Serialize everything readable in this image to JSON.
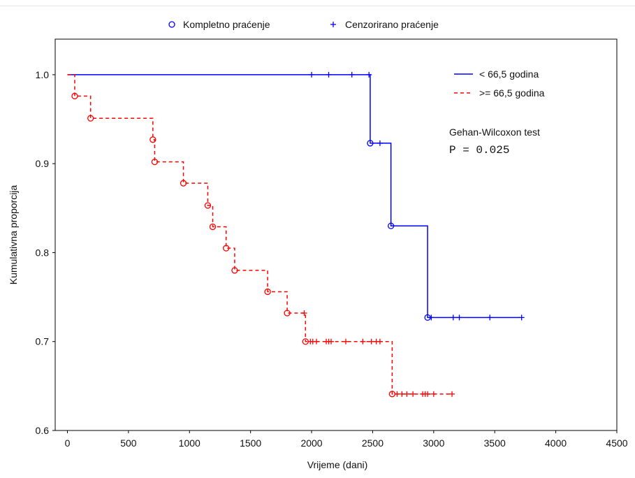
{
  "chart_data": {
    "type": "line",
    "xlabel": "Vrijeme (dani)",
    "ylabel": "Kumulativna proporcija",
    "xlim": [
      -100,
      4500
    ],
    "ylim": [
      0.6,
      1.04
    ],
    "x_ticks": [
      0,
      500,
      1000,
      1500,
      2000,
      2500,
      3000,
      3500,
      4000,
      4500
    ],
    "y_ticks": [
      0.6,
      0.7,
      0.8,
      0.9,
      1.0
    ],
    "x_tick_labels": [
      "0",
      "500",
      "1000",
      "1500",
      "2000",
      "2500",
      "3000",
      "3500",
      "4000",
      "4500"
    ],
    "y_tick_labels": [
      "0.6",
      "0.7",
      "0.8",
      "0.9",
      "1.0"
    ],
    "marker_legend": {
      "complete": "Kompletno praćenje",
      "censored": "Cenzorirano praćenje"
    },
    "annotation": {
      "test": "Gehan-Wilcoxon test",
      "p_value": "P = 0.025"
    },
    "grid": false,
    "legend_position": "top-right",
    "series": [
      {
        "name": "< 66,5 godina",
        "color": "#0000ff",
        "line_style": "solid",
        "steps": [
          [
            0,
            1.0
          ],
          [
            2480,
            0.923
          ],
          [
            2650,
            0.83
          ],
          [
            2950,
            0.727
          ],
          [
            3710,
            0.727
          ]
        ],
        "events": [
          [
            2480,
            0.923
          ],
          [
            2650,
            0.83
          ],
          [
            2950,
            0.727
          ]
        ],
        "censored": [
          [
            2000,
            1.0
          ],
          [
            2140,
            1.0
          ],
          [
            2330,
            1.0
          ],
          [
            2470,
            1.0
          ],
          [
            2560,
            0.923
          ],
          [
            2980,
            0.727
          ],
          [
            3160,
            0.727
          ],
          [
            3210,
            0.727
          ],
          [
            3460,
            0.727
          ],
          [
            3720,
            0.727
          ]
        ]
      },
      {
        "name": ">= 66,5 godina",
        "color": "#ff0000",
        "line_style": "dashed",
        "steps": [
          [
            0,
            1.0
          ],
          [
            60,
            0.976
          ],
          [
            190,
            0.951
          ],
          [
            700,
            0.927
          ],
          [
            715,
            0.902
          ],
          [
            950,
            0.878
          ],
          [
            1150,
            0.853
          ],
          [
            1190,
            0.829
          ],
          [
            1300,
            0.805
          ],
          [
            1370,
            0.78
          ],
          [
            1640,
            0.756
          ],
          [
            1800,
            0.732
          ],
          [
            1950,
            0.7
          ],
          [
            2660,
            0.641
          ],
          [
            3140,
            0.641
          ]
        ],
        "events": [
          [
            60,
            0.976
          ],
          [
            190,
            0.951
          ],
          [
            700,
            0.927
          ],
          [
            715,
            0.902
          ],
          [
            950,
            0.878
          ],
          [
            1150,
            0.853
          ],
          [
            1190,
            0.829
          ],
          [
            1300,
            0.805
          ],
          [
            1370,
            0.78
          ],
          [
            1640,
            0.756
          ],
          [
            1800,
            0.732
          ],
          [
            1950,
            0.7
          ],
          [
            2660,
            0.641
          ]
        ],
        "censored": [
          [
            1940,
            0.732
          ],
          [
            1990,
            0.7
          ],
          [
            2010,
            0.7
          ],
          [
            2040,
            0.7
          ],
          [
            2120,
            0.7
          ],
          [
            2140,
            0.7
          ],
          [
            2160,
            0.7
          ],
          [
            2280,
            0.7
          ],
          [
            2420,
            0.7
          ],
          [
            2490,
            0.7
          ],
          [
            2530,
            0.7
          ],
          [
            2560,
            0.7
          ],
          [
            2700,
            0.641
          ],
          [
            2740,
            0.641
          ],
          [
            2780,
            0.641
          ],
          [
            2830,
            0.641
          ],
          [
            2910,
            0.641
          ],
          [
            2930,
            0.641
          ],
          [
            2950,
            0.641
          ],
          [
            3000,
            0.641
          ],
          [
            3150,
            0.641
          ]
        ]
      }
    ]
  }
}
